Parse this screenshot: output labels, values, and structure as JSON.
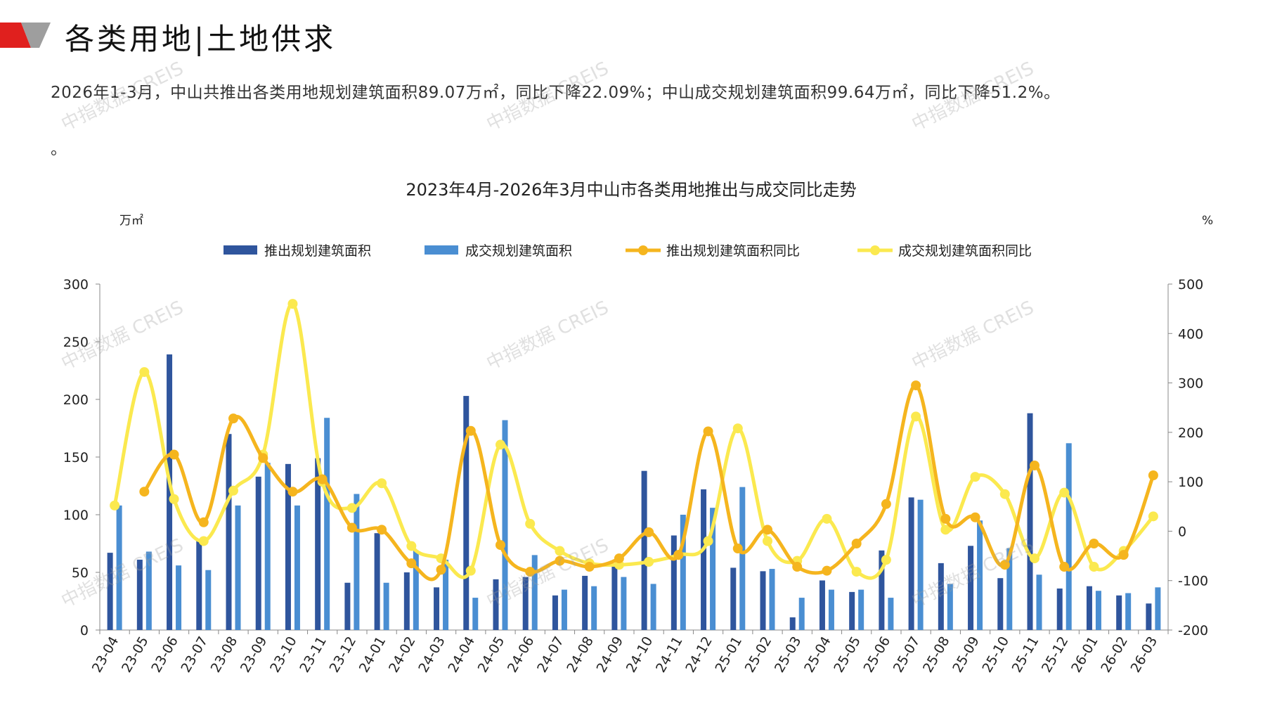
{
  "header": {
    "title": "各类用地|土地供求"
  },
  "summary": {
    "text": "2026年1-3月，中山共推出各类用地规划建筑面积89.07万㎡，同比下降22.09%；中山成交规划建筑面积99.64万㎡，同比下降51.2%。",
    "trailing": "。"
  },
  "watermark": "中指数据 CREIS",
  "colors": {
    "supply_bar": "#2F559D",
    "deal_bar": "#4A8ED2",
    "supply_yoy": "#F5B51E",
    "deal_yoy": "#FBE94F",
    "logo_red": "#E0201E",
    "logo_gray": "#9E9E9E"
  },
  "chart_data": {
    "type": "bar",
    "title": "2023年4月-2026年3月中山市各类用地推出与成交同比走势",
    "ylabel": "万㎡",
    "y2label": "%",
    "ylim": [
      0,
      300
    ],
    "y2lim": [
      -200,
      500
    ],
    "yticks": [
      0,
      50,
      100,
      150,
      200,
      250,
      300
    ],
    "y2ticks": [
      -200,
      -100,
      0,
      100,
      200,
      300,
      400,
      500
    ],
    "legend_position": "top",
    "categories": [
      "23-04",
      "23-05",
      "23-06",
      "23-07",
      "23-08",
      "23-09",
      "23-10",
      "23-11",
      "23-12",
      "24-01",
      "24-02",
      "24-03",
      "24-04",
      "24-05",
      "24-06",
      "24-07",
      "24-08",
      "24-09",
      "24-10",
      "24-11",
      "24-12",
      "25-01",
      "25-02",
      "25-03",
      "25-04",
      "25-05",
      "25-06",
      "25-07",
      "25-08",
      "25-09",
      "25-10",
      "25-11",
      "25-12",
      "26-01",
      "26-02",
      "26-03"
    ],
    "series": [
      {
        "name": "推出规划建筑面积",
        "kind": "bar",
        "axis": "left",
        "values": [
          67,
          61,
          239,
          79,
          170,
          133,
          144,
          149,
          41,
          84,
          50,
          37,
          203,
          44,
          46,
          30,
          47,
          56,
          138,
          82,
          122,
          54,
          51,
          11,
          43,
          33,
          69,
          115,
          58,
          73,
          45,
          188,
          36,
          38,
          30,
          23
        ]
      },
      {
        "name": "成交规划建筑面积",
        "kind": "bar",
        "axis": "left",
        "values": [
          108,
          68,
          56,
          52,
          108,
          145,
          108,
          184,
          118,
          41,
          69,
          61,
          28,
          182,
          65,
          35,
          38,
          46,
          40,
          100,
          106,
          124,
          53,
          28,
          35,
          35,
          28,
          113,
          40,
          95,
          71,
          48,
          162,
          34,
          32,
          37
        ]
      },
      {
        "name": "推出规划建筑面积同比",
        "kind": "line",
        "axis": "right",
        "values": [
          null,
          80,
          155,
          18,
          228,
          148,
          80,
          105,
          7,
          3,
          -65,
          -78,
          203,
          -28,
          -82,
          -60,
          -72,
          -55,
          -2,
          -48,
          202,
          -35,
          3,
          -72,
          -80,
          -25,
          55,
          295,
          25,
          28,
          -68,
          133,
          -72,
          -25,
          -48,
          113
        ]
      },
      {
        "name": "成交规划建筑面积同比",
        "kind": "line",
        "axis": "right",
        "values": [
          52,
          322,
          65,
          -20,
          82,
          155,
          460,
          100,
          47,
          97,
          -30,
          -55,
          -80,
          175,
          15,
          -40,
          -65,
          -68,
          -62,
          -48,
          -20,
          208,
          -20,
          -60,
          25,
          -82,
          -58,
          232,
          3,
          110,
          75,
          -55,
          78,
          -72,
          -40,
          30
        ]
      }
    ]
  }
}
